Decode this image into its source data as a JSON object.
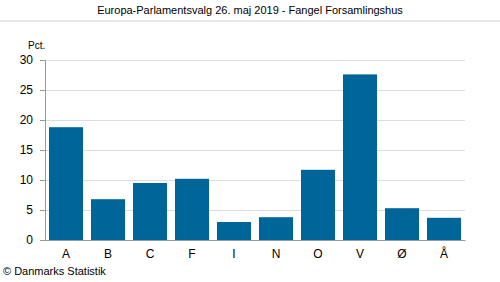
{
  "chart_data": {
    "type": "bar",
    "title": "Europa-Parlamentsvalg 26. maj 2019 - Fangel Forsamlingshus",
    "y_label": "Pct.",
    "source": "© Danmarks Statistik",
    "categories": [
      "A",
      "B",
      "C",
      "F",
      "I",
      "N",
      "O",
      "V",
      "Ø",
      "Å"
    ],
    "values": [
      18.8,
      6.8,
      9.5,
      10.2,
      3.0,
      3.8,
      11.7,
      27.6,
      5.3,
      3.7
    ],
    "color": "#006699",
    "ylim": [
      0,
      30
    ],
    "yticks": [
      0,
      5,
      10,
      15,
      20,
      25,
      30
    ],
    "grid": true
  }
}
